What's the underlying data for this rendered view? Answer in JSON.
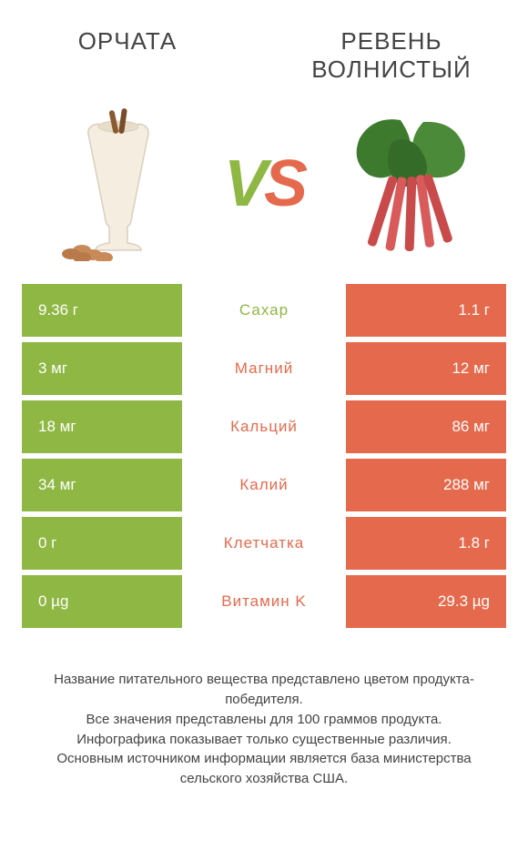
{
  "colors": {
    "green": "#8fb743",
    "orange": "#e56a4d",
    "rhubarb_stalk": "#c94a4a",
    "rhubarb_leaf": "#3d7a2e",
    "glass_liquid": "#f4ede0",
    "almond": "#c98a5a",
    "bg": "#ffffff"
  },
  "titles": {
    "left": "ОРЧАТА",
    "right": "РЕВЕНЬ ВОЛНИСТЫЙ"
  },
  "vs": {
    "v": "V",
    "s": "S"
  },
  "rows": [
    {
      "left": "9.36 г",
      "mid": "Сахар",
      "right": "1.1 г",
      "winner": "left"
    },
    {
      "left": "3 мг",
      "mid": "Магний",
      "right": "12 мг",
      "winner": "right"
    },
    {
      "left": "18 мг",
      "mid": "Кальций",
      "right": "86 мг",
      "winner": "right"
    },
    {
      "left": "34 мг",
      "mid": "Калий",
      "right": "288 мг",
      "winner": "right"
    },
    {
      "left": "0 г",
      "mid": "Клетчатка",
      "right": "1.8 г",
      "winner": "right"
    },
    {
      "left": "0 µg",
      "mid": "Витамин K",
      "right": "29.3 µg",
      "winner": "right"
    }
  ],
  "footer": [
    "Название питательного вещества представлено цветом продукта-победителя.",
    "Все значения представлены для 100 граммов продукта.",
    "Инфографика показывает только существенные различия.",
    "Основным источником информации является база министерства сельского хозяйства США."
  ]
}
